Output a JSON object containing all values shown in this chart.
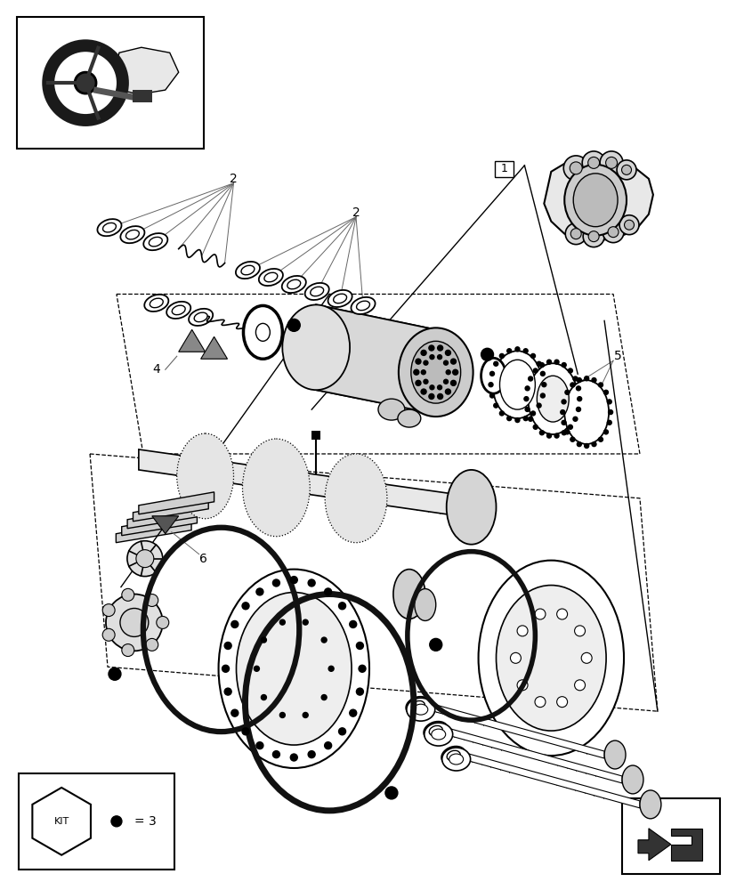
{
  "bg_color": "#ffffff",
  "fig_w": 8.28,
  "fig_h": 10.0,
  "dpi": 100
}
